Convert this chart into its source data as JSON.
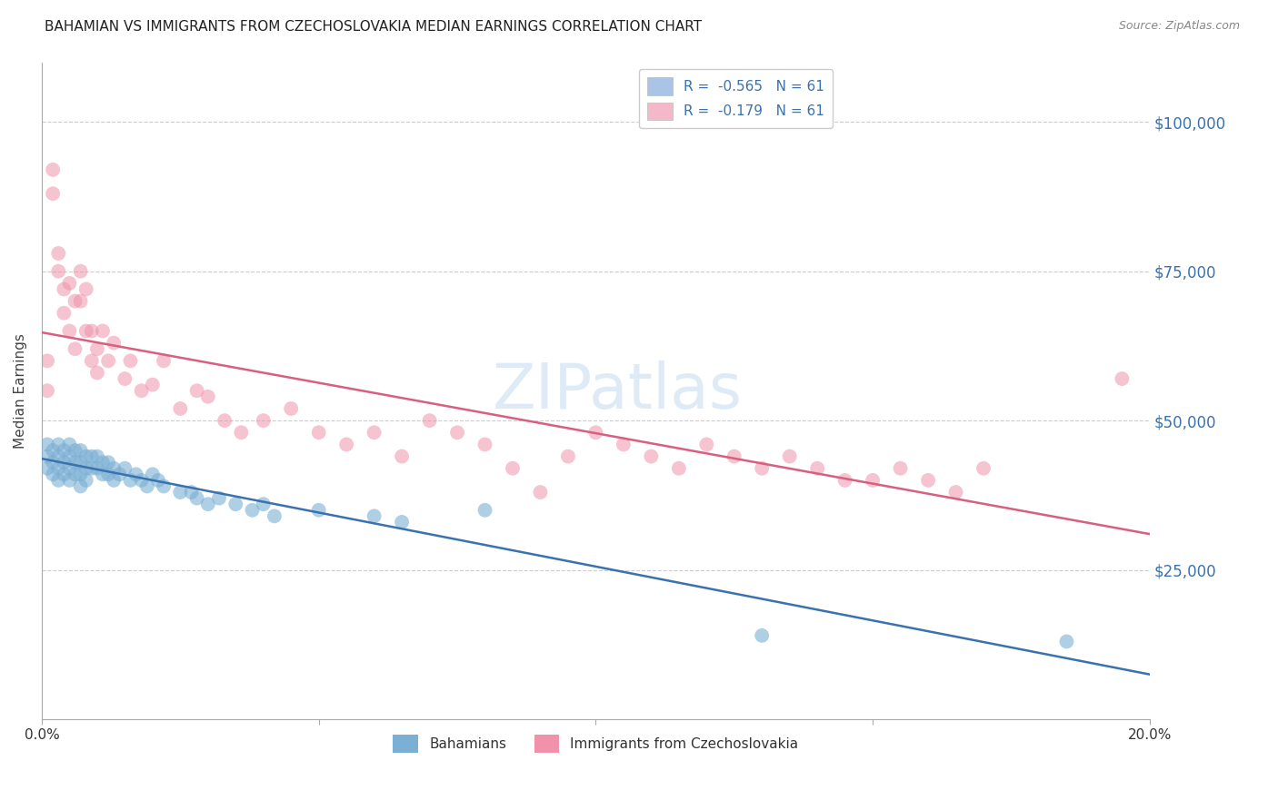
{
  "title": "BAHAMIAN VS IMMIGRANTS FROM CZECHOSLOVAKIA MEDIAN EARNINGS CORRELATION CHART",
  "source": "Source: ZipAtlas.com",
  "ylabel": "Median Earnings",
  "watermark": "ZIPatlas",
  "legend_entries": [
    {
      "label": "R =  -0.565   N = 61",
      "color": "#aac4e8"
    },
    {
      "label": "R =  -0.179   N = 61",
      "color": "#f4b8c8"
    }
  ],
  "legend_labels": [
    "Bahamians",
    "Immigrants from Czechoslovakia"
  ],
  "blue_color": "#7bafd4",
  "pink_color": "#f093aa",
  "blue_line_color": "#3a72b0",
  "pink_line_color": "#d95f7e",
  "ytick_labels": [
    "$25,000",
    "$50,000",
    "$75,000",
    "$100,000"
  ],
  "ytick_values": [
    25000,
    50000,
    75000,
    100000
  ],
  "xlim": [
    0,
    0.2
  ],
  "ylim": [
    0,
    110000
  ],
  "blue_x": [
    0.001,
    0.001,
    0.001,
    0.002,
    0.002,
    0.002,
    0.003,
    0.003,
    0.003,
    0.003,
    0.004,
    0.004,
    0.004,
    0.005,
    0.005,
    0.005,
    0.005,
    0.006,
    0.006,
    0.006,
    0.007,
    0.007,
    0.007,
    0.007,
    0.008,
    0.008,
    0.008,
    0.009,
    0.009,
    0.01,
    0.01,
    0.011,
    0.011,
    0.012,
    0.012,
    0.013,
    0.013,
    0.014,
    0.015,
    0.016,
    0.017,
    0.018,
    0.019,
    0.02,
    0.021,
    0.022,
    0.025,
    0.027,
    0.028,
    0.03,
    0.032,
    0.035,
    0.038,
    0.04,
    0.042,
    0.05,
    0.06,
    0.065,
    0.08,
    0.13,
    0.185
  ],
  "blue_y": [
    46000,
    44000,
    42000,
    45000,
    43000,
    41000,
    46000,
    44000,
    42000,
    40000,
    45000,
    43000,
    41000,
    46000,
    44000,
    42000,
    40000,
    45000,
    43000,
    41000,
    45000,
    43000,
    41000,
    39000,
    44000,
    42000,
    40000,
    44000,
    42000,
    44000,
    42000,
    43000,
    41000,
    43000,
    41000,
    42000,
    40000,
    41000,
    42000,
    40000,
    41000,
    40000,
    39000,
    41000,
    40000,
    39000,
    38000,
    38000,
    37000,
    36000,
    37000,
    36000,
    35000,
    36000,
    34000,
    35000,
    34000,
    33000,
    35000,
    14000,
    13000
  ],
  "pink_x": [
    0.001,
    0.001,
    0.002,
    0.002,
    0.003,
    0.003,
    0.004,
    0.004,
    0.005,
    0.005,
    0.006,
    0.006,
    0.007,
    0.007,
    0.008,
    0.008,
    0.009,
    0.009,
    0.01,
    0.01,
    0.011,
    0.012,
    0.013,
    0.015,
    0.016,
    0.018,
    0.02,
    0.022,
    0.025,
    0.028,
    0.03,
    0.033,
    0.036,
    0.04,
    0.045,
    0.05,
    0.055,
    0.06,
    0.065,
    0.07,
    0.075,
    0.08,
    0.085,
    0.09,
    0.095,
    0.1,
    0.105,
    0.11,
    0.115,
    0.12,
    0.125,
    0.13,
    0.135,
    0.14,
    0.145,
    0.15,
    0.155,
    0.16,
    0.165,
    0.17,
    0.195
  ],
  "pink_y": [
    60000,
    55000,
    92000,
    88000,
    78000,
    75000,
    72000,
    68000,
    73000,
    65000,
    70000,
    62000,
    75000,
    70000,
    65000,
    72000,
    60000,
    65000,
    62000,
    58000,
    65000,
    60000,
    63000,
    57000,
    60000,
    55000,
    56000,
    60000,
    52000,
    55000,
    54000,
    50000,
    48000,
    50000,
    52000,
    48000,
    46000,
    48000,
    44000,
    50000,
    48000,
    46000,
    42000,
    38000,
    44000,
    48000,
    46000,
    44000,
    42000,
    46000,
    44000,
    42000,
    44000,
    42000,
    40000,
    40000,
    42000,
    40000,
    38000,
    42000,
    57000
  ]
}
